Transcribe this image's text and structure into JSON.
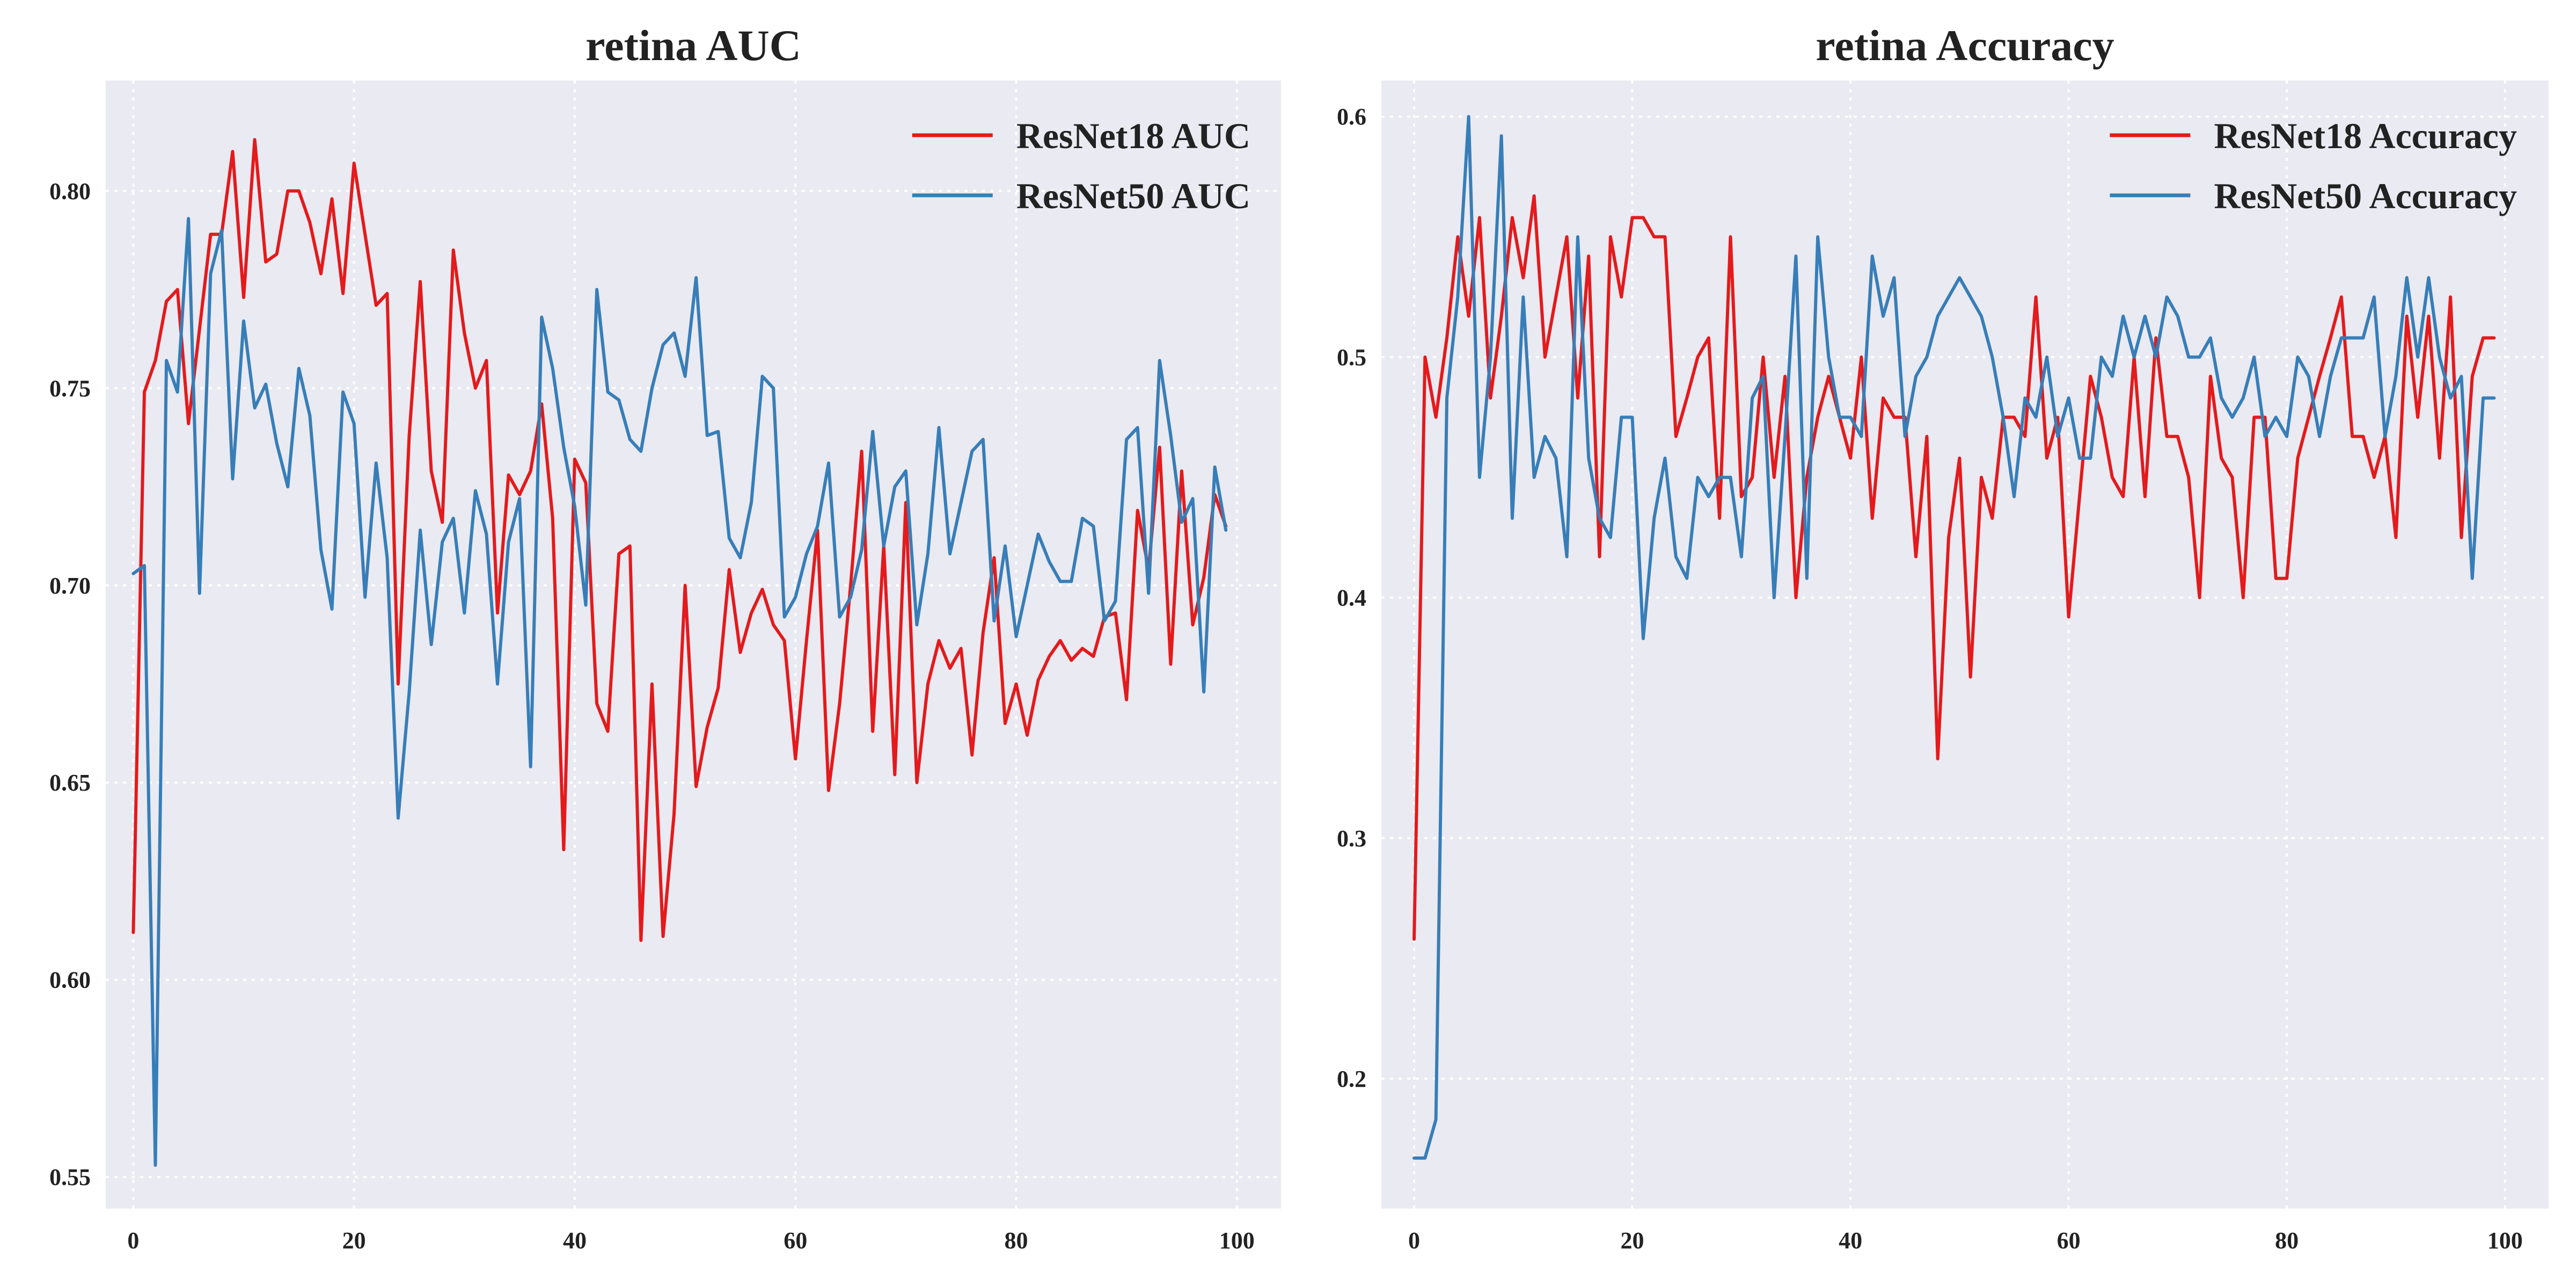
{
  "chart_data": [
    {
      "type": "line",
      "title": "retina AUC",
      "xlabel": "",
      "ylabel": "",
      "xlim": [
        -2.5,
        104
      ],
      "ylim": [
        0.542,
        0.828
      ],
      "xticks": [
        0,
        20,
        40,
        60,
        80,
        100
      ],
      "xtick_labels": [
        "0",
        "20",
        "40",
        "60",
        "80",
        "100"
      ],
      "yticks": [
        0.55,
        0.6,
        0.65,
        0.7,
        0.75,
        0.8
      ],
      "ytick_labels": [
        "0.55",
        "0.60",
        "0.65",
        "0.70",
        "0.75",
        "0.80"
      ],
      "grid": true,
      "legend_position": "top-right",
      "x": [
        0,
        1,
        2,
        3,
        4,
        5,
        6,
        7,
        8,
        9,
        10,
        11,
        12,
        13,
        14,
        15,
        16,
        17,
        18,
        19,
        20,
        21,
        22,
        23,
        24,
        25,
        26,
        27,
        28,
        29,
        30,
        31,
        32,
        33,
        34,
        35,
        36,
        37,
        38,
        39,
        40,
        41,
        42,
        43,
        44,
        45,
        46,
        47,
        48,
        49,
        50,
        51,
        52,
        53,
        54,
        55,
        56,
        57,
        58,
        59,
        60,
        61,
        62,
        63,
        64,
        65,
        66,
        67,
        68,
        69,
        70,
        71,
        72,
        73,
        74,
        75,
        76,
        77,
        78,
        79,
        80,
        81,
        82,
        83,
        84,
        85,
        86,
        87,
        88,
        89,
        90,
        91,
        92,
        93,
        94,
        95,
        96,
        97,
        98,
        99
      ],
      "series": [
        {
          "name": "ResNet18 AUC",
          "color": "#e41a1c",
          "values": [
            0.612,
            0.749,
            0.757,
            0.772,
            0.775,
            0.741,
            0.765,
            0.789,
            0.789,
            0.81,
            0.773,
            0.813,
            0.782,
            0.784,
            0.8,
            0.8,
            0.792,
            0.779,
            0.798,
            0.774,
            0.807,
            0.789,
            0.771,
            0.774,
            0.675,
            0.738,
            0.777,
            0.729,
            0.716,
            0.785,
            0.764,
            0.75,
            0.757,
            0.693,
            0.728,
            0.723,
            0.729,
            0.746,
            0.717,
            0.633,
            0.732,
            0.726,
            0.67,
            0.663,
            0.708,
            0.71,
            0.61,
            0.675,
            0.611,
            0.642,
            0.7,
            0.649,
            0.664,
            0.674,
            0.704,
            0.683,
            0.693,
            0.699,
            0.69,
            0.686,
            0.656,
            0.686,
            0.714,
            0.648,
            0.67,
            0.7,
            0.734,
            0.663,
            0.71,
            0.652,
            0.721,
            0.65,
            0.675,
            0.686,
            0.679,
            0.684,
            0.657,
            0.688,
            0.707,
            0.665,
            0.675,
            0.662,
            0.676,
            0.682,
            0.686,
            0.681,
            0.684,
            0.682,
            0.692,
            0.693,
            0.671,
            0.719,
            0.704,
            0.735,
            0.68,
            0.729,
            0.69,
            0.702,
            0.723,
            0.715
          ]
        },
        {
          "name": "ResNet50 AUC",
          "color": "#377eb8",
          "values": [
            0.703,
            0.705,
            0.553,
            0.757,
            0.749,
            0.793,
            0.698,
            0.779,
            0.79,
            0.727,
            0.767,
            0.745,
            0.751,
            0.736,
            0.725,
            0.755,
            0.743,
            0.709,
            0.694,
            0.749,
            0.741,
            0.697,
            0.731,
            0.707,
            0.641,
            0.673,
            0.714,
            0.685,
            0.711,
            0.717,
            0.693,
            0.724,
            0.713,
            0.675,
            0.711,
            0.722,
            0.654,
            0.768,
            0.755,
            0.735,
            0.72,
            0.695,
            0.775,
            0.749,
            0.747,
            0.737,
            0.734,
            0.75,
            0.761,
            0.764,
            0.753,
            0.778,
            0.738,
            0.739,
            0.712,
            0.707,
            0.721,
            0.753,
            0.75,
            0.692,
            0.697,
            0.708,
            0.715,
            0.731,
            0.692,
            0.697,
            0.709,
            0.739,
            0.71,
            0.725,
            0.729,
            0.69,
            0.708,
            0.74,
            0.708,
            0.721,
            0.734,
            0.737,
            0.691,
            0.71,
            0.687,
            0.7,
            0.713,
            0.706,
            0.701,
            0.701,
            0.717,
            0.715,
            0.691,
            0.696,
            0.737,
            0.74,
            0.698,
            0.757,
            0.738,
            0.716,
            0.722,
            0.673,
            0.73,
            0.714
          ]
        }
      ]
    },
    {
      "type": "line",
      "title": "retina Accuracy",
      "xlabel": "",
      "ylabel": "",
      "xlim": [
        -3,
        104
      ],
      "ylim": [
        0.146,
        0.615
      ],
      "xticks": [
        0,
        20,
        40,
        60,
        80,
        100
      ],
      "xtick_labels": [
        "0",
        "20",
        "40",
        "60",
        "80",
        "100"
      ],
      "yticks": [
        0.2,
        0.3,
        0.4,
        0.5,
        0.6
      ],
      "ytick_labels": [
        "0.2",
        "0.3",
        "0.4",
        "0.5",
        "0.6"
      ],
      "grid": true,
      "legend_position": "top-right",
      "x": [
        0,
        1,
        2,
        3,
        4,
        5,
        6,
        7,
        8,
        9,
        10,
        11,
        12,
        13,
        14,
        15,
        16,
        17,
        18,
        19,
        20,
        21,
        22,
        23,
        24,
        25,
        26,
        27,
        28,
        29,
        30,
        31,
        32,
        33,
        34,
        35,
        36,
        37,
        38,
        39,
        40,
        41,
        42,
        43,
        44,
        45,
        46,
        47,
        48,
        49,
        50,
        51,
        52,
        53,
        54,
        55,
        56,
        57,
        58,
        59,
        60,
        61,
        62,
        63,
        64,
        65,
        66,
        67,
        68,
        69,
        70,
        71,
        72,
        73,
        74,
        75,
        76,
        77,
        78,
        79,
        80,
        81,
        82,
        83,
        84,
        85,
        86,
        87,
        88,
        89,
        90,
        91,
        92,
        93,
        94,
        95,
        96,
        97,
        98,
        99
      ],
      "series": [
        {
          "name": "ResNet18 Accuracy",
          "color": "#e41a1c",
          "values": [
            0.258,
            0.5,
            0.475,
            0.508,
            0.55,
            0.517,
            0.558,
            0.483,
            0.517,
            0.558,
            0.533,
            0.567,
            0.5,
            0.525,
            0.55,
            0.483,
            0.542,
            0.417,
            0.55,
            0.525,
            0.558,
            0.558,
            0.55,
            0.55,
            0.467,
            0.483,
            0.5,
            0.508,
            0.433,
            0.55,
            0.442,
            0.45,
            0.5,
            0.45,
            0.492,
            0.4,
            0.45,
            0.475,
            0.492,
            0.475,
            0.458,
            0.5,
            0.433,
            0.483,
            0.475,
            0.475,
            0.417,
            0.467,
            0.333,
            0.425,
            0.458,
            0.367,
            0.45,
            0.433,
            0.475,
            0.475,
            0.467,
            0.525,
            0.458,
            0.475,
            0.392,
            0.442,
            0.492,
            0.475,
            0.45,
            0.442,
            0.5,
            0.442,
            0.508,
            0.467,
            0.467,
            0.45,
            0.4,
            0.492,
            0.458,
            0.45,
            0.4,
            0.475,
            0.475,
            0.408,
            0.408,
            0.458,
            0.475,
            0.492,
            0.508,
            0.525,
            0.467,
            0.467,
            0.45,
            0.467,
            0.425,
            0.517,
            0.475,
            0.517,
            0.458,
            0.525,
            0.425,
            0.492,
            0.508,
            0.508
          ]
        },
        {
          "name": "ResNet50 Accuracy",
          "color": "#377eb8",
          "values": [
            0.167,
            0.167,
            0.183,
            0.483,
            0.525,
            0.6,
            0.45,
            0.5,
            0.592,
            0.433,
            0.525,
            0.45,
            0.467,
            0.458,
            0.417,
            0.55,
            0.458,
            0.433,
            0.425,
            0.475,
            0.475,
            0.383,
            0.433,
            0.458,
            0.417,
            0.408,
            0.45,
            0.442,
            0.45,
            0.45,
            0.417,
            0.483,
            0.492,
            0.4,
            0.467,
            0.542,
            0.408,
            0.55,
            0.5,
            0.475,
            0.475,
            0.467,
            0.542,
            0.517,
            0.533,
            0.467,
            0.492,
            0.5,
            0.517,
            0.525,
            0.533,
            0.525,
            0.517,
            0.5,
            0.475,
            0.442,
            0.483,
            0.475,
            0.5,
            0.467,
            0.483,
            0.458,
            0.458,
            0.5,
            0.492,
            0.517,
            0.5,
            0.517,
            0.5,
            0.525,
            0.517,
            0.5,
            0.5,
            0.508,
            0.483,
            0.475,
            0.483,
            0.5,
            0.467,
            0.475,
            0.467,
            0.5,
            0.492,
            0.467,
            0.492,
            0.508,
            0.508,
            0.508,
            0.525,
            0.467,
            0.492,
            0.533,
            0.5,
            0.533,
            0.5,
            0.483,
            0.492,
            0.408,
            0.483,
            0.483
          ]
        }
      ]
    }
  ]
}
